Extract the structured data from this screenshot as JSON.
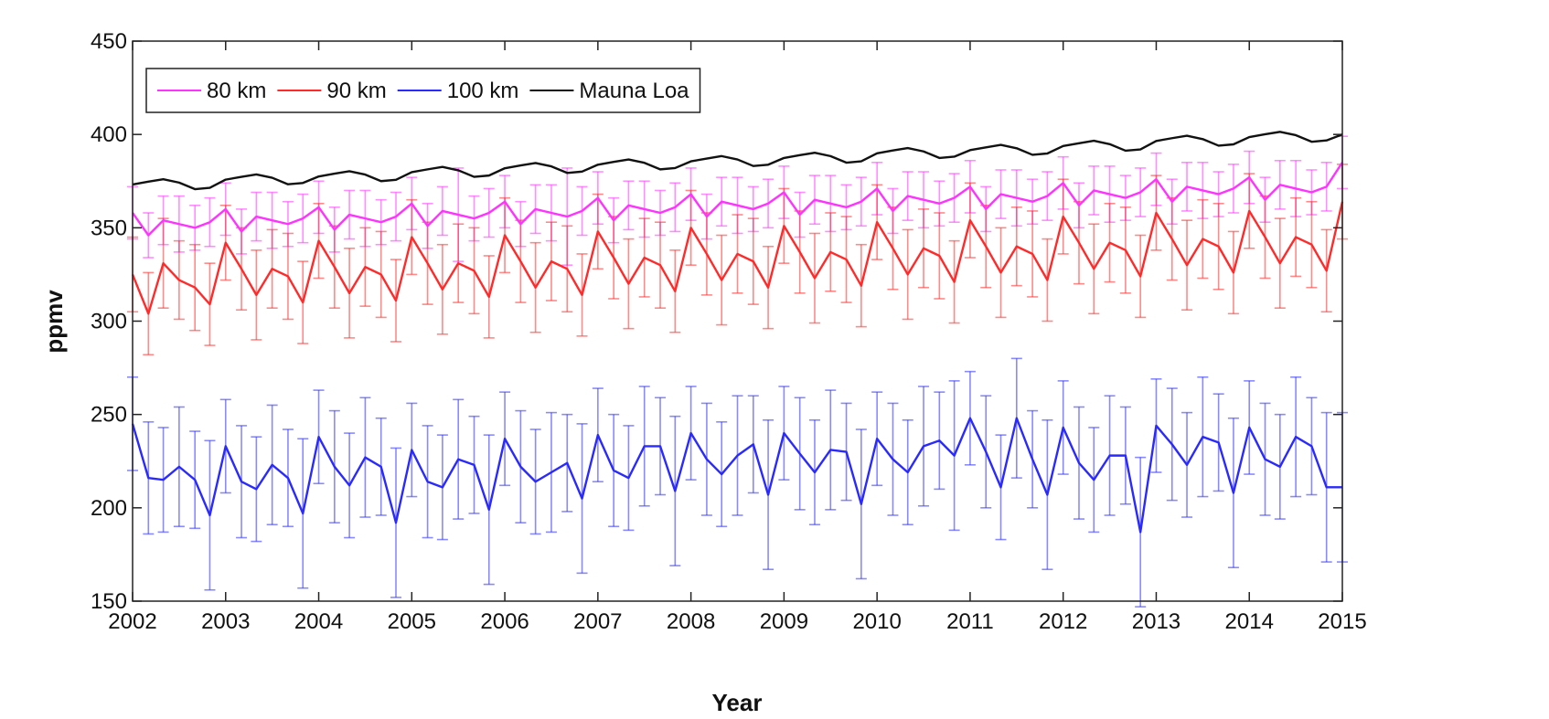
{
  "chart_data": {
    "type": "line",
    "x_label": "Year",
    "y_label": "ppmv",
    "xlim": [
      2002,
      2015
    ],
    "ylim": [
      150,
      450
    ],
    "xticks": [
      2002,
      2003,
      2004,
      2005,
      2006,
      2007,
      2008,
      2009,
      2010,
      2011,
      2012,
      2013,
      2014,
      2015
    ],
    "yticks": [
      150,
      200,
      250,
      300,
      350,
      400,
      450
    ],
    "legend": "upper left",
    "x": [
      2002,
      2002.17,
      2002.33,
      2002.5,
      2002.67,
      2002.83,
      2003,
      2003.17,
      2003.33,
      2003.5,
      2003.67,
      2003.83,
      2004,
      2004.17,
      2004.33,
      2004.5,
      2004.67,
      2004.83,
      2005,
      2005.17,
      2005.33,
      2005.5,
      2005.67,
      2005.83,
      2006,
      2006.17,
      2006.33,
      2006.5,
      2006.67,
      2006.83,
      2007,
      2007.17,
      2007.33,
      2007.5,
      2007.67,
      2007.83,
      2008,
      2008.17,
      2008.33,
      2008.5,
      2008.67,
      2008.83,
      2009,
      2009.17,
      2009.33,
      2009.5,
      2009.67,
      2009.83,
      2010,
      2010.17,
      2010.33,
      2010.5,
      2010.67,
      2010.83,
      2011,
      2011.17,
      2011.33,
      2011.5,
      2011.67,
      2011.83,
      2012,
      2012.17,
      2012.33,
      2012.5,
      2012.67,
      2012.83,
      2013,
      2013.17,
      2013.33,
      2013.5,
      2013.67,
      2013.83,
      2014,
      2014.17,
      2014.33,
      2014.5,
      2014.67,
      2014.83,
      2015
    ],
    "series": [
      {
        "name": "80 km",
        "color": "#ff33ff",
        "values": [
          358,
          346,
          354,
          352,
          350,
          353,
          360,
          348,
          356,
          354,
          352,
          355,
          361,
          349,
          357,
          355,
          353,
          356,
          363,
          351,
          359,
          357,
          355,
          358,
          364,
          352,
          360,
          358,
          356,
          359,
          366,
          354,
          362,
          360,
          358,
          361,
          368,
          356,
          364,
          362,
          360,
          363,
          369,
          357,
          365,
          363,
          361,
          364,
          371,
          359,
          367,
          365,
          363,
          366,
          372,
          360,
          368,
          366,
          364,
          367,
          374,
          362,
          370,
          368,
          366,
          369,
          376,
          364,
          372,
          370,
          368,
          371,
          377,
          365,
          373,
          371,
          369,
          372,
          385
        ],
        "errors": [
          14,
          12,
          13,
          15,
          12,
          13,
          14,
          12,
          13,
          15,
          12,
          13,
          14,
          12,
          13,
          15,
          12,
          13,
          14,
          12,
          13,
          25,
          12,
          13,
          14,
          12,
          13,
          15,
          26,
          13,
          14,
          12,
          13,
          15,
          12,
          13,
          14,
          12,
          13,
          15,
          12,
          13,
          14,
          12,
          13,
          15,
          12,
          13,
          14,
          12,
          13,
          15,
          12,
          13,
          14,
          12,
          13,
          15,
          12,
          13,
          14,
          12,
          13,
          15,
          12,
          13,
          14,
          12,
          13,
          15,
          12,
          13,
          14,
          12,
          13,
          15,
          12,
          13,
          14
        ]
      },
      {
        "name": "90 km",
        "color": "#ff2a2a",
        "values": [
          325,
          304,
          331,
          322,
          318,
          309,
          342,
          328,
          314,
          328,
          324,
          310,
          343,
          329,
          315,
          329,
          325,
          311,
          345,
          331,
          317,
          331,
          327,
          313,
          346,
          332,
          318,
          332,
          328,
          314,
          348,
          334,
          320,
          334,
          330,
          316,
          350,
          336,
          322,
          336,
          332,
          318,
          351,
          337,
          323,
          337,
          333,
          319,
          353,
          339,
          325,
          339,
          335,
          321,
          354,
          340,
          326,
          340,
          336,
          322,
          356,
          342,
          328,
          342,
          338,
          324,
          358,
          344,
          330,
          344,
          340,
          326,
          359,
          345,
          331,
          345,
          341,
          327,
          364
        ],
        "errors": [
          20,
          22,
          24,
          21,
          23,
          22,
          20,
          22,
          24,
          21,
          23,
          22,
          20,
          22,
          24,
          21,
          23,
          22,
          20,
          22,
          24,
          21,
          23,
          22,
          20,
          22,
          24,
          21,
          23,
          22,
          20,
          22,
          24,
          21,
          23,
          22,
          20,
          22,
          24,
          21,
          23,
          22,
          20,
          22,
          24,
          21,
          23,
          22,
          20,
          22,
          24,
          21,
          23,
          22,
          20,
          22,
          24,
          21,
          23,
          22,
          20,
          22,
          24,
          21,
          23,
          22,
          20,
          22,
          24,
          21,
          23,
          22,
          20,
          22,
          24,
          21,
          23,
          22,
          20
        ]
      },
      {
        "name": "100 km",
        "color": "#2a2aff",
        "values": [
          245,
          216,
          215,
          222,
          215,
          196,
          233,
          214,
          210,
          223,
          216,
          197,
          238,
          222,
          212,
          227,
          222,
          192,
          231,
          214,
          211,
          226,
          223,
          199,
          237,
          222,
          214,
          219,
          224,
          205,
          239,
          220,
          216,
          233,
          233,
          209,
          240,
          226,
          218,
          228,
          234,
          207,
          240,
          229,
          219,
          231,
          230,
          202,
          237,
          226,
          219,
          233,
          236,
          228,
          248,
          230,
          211,
          248,
          226,
          207,
          243,
          224,
          215,
          228,
          228,
          187,
          244,
          234,
          223,
          238,
          235,
          208,
          243,
          226,
          222,
          238,
          233,
          211,
          211
        ],
        "errors": [
          25,
          30,
          28,
          32,
          26,
          40,
          25,
          30,
          28,
          32,
          26,
          40,
          25,
          30,
          28,
          32,
          26,
          40,
          25,
          30,
          28,
          32,
          26,
          40,
          25,
          30,
          28,
          32,
          26,
          40,
          25,
          30,
          28,
          32,
          26,
          40,
          25,
          30,
          28,
          32,
          26,
          40,
          25,
          30,
          28,
          32,
          26,
          40,
          25,
          30,
          28,
          32,
          26,
          40,
          25,
          30,
          28,
          32,
          26,
          40,
          25,
          30,
          28,
          32,
          26,
          40,
          25,
          30,
          28,
          32,
          26,
          40,
          25,
          30,
          28,
          32,
          26,
          40,
          40
        ]
      },
      {
        "name": "Mauna Loa",
        "color": "#111111",
        "values": [
          373.2,
          374.7,
          376.0,
          374.2,
          370.7,
          371.4,
          375.8,
          377.3,
          378.6,
          376.8,
          373.3,
          374.0,
          377.5,
          379.0,
          380.3,
          378.5,
          375.0,
          375.7,
          379.8,
          381.3,
          382.6,
          380.8,
          377.3,
          378.0,
          381.9,
          383.4,
          384.7,
          382.9,
          379.4,
          380.1,
          383.8,
          385.3,
          386.6,
          384.8,
          381.3,
          382.0,
          385.6,
          387.1,
          388.4,
          386.6,
          383.1,
          383.8,
          387.4,
          388.9,
          390.2,
          388.4,
          384.9,
          385.6,
          389.9,
          391.4,
          392.7,
          390.9,
          387.4,
          388.1,
          391.6,
          393.1,
          394.4,
          392.6,
          389.1,
          389.8,
          393.8,
          395.3,
          396.6,
          394.8,
          391.3,
          392.0,
          396.5,
          398.0,
          399.3,
          397.5,
          394.0,
          394.7,
          398.6,
          400.1,
          401.4,
          399.6,
          396.1,
          396.8,
          400.0
        ]
      }
    ]
  }
}
